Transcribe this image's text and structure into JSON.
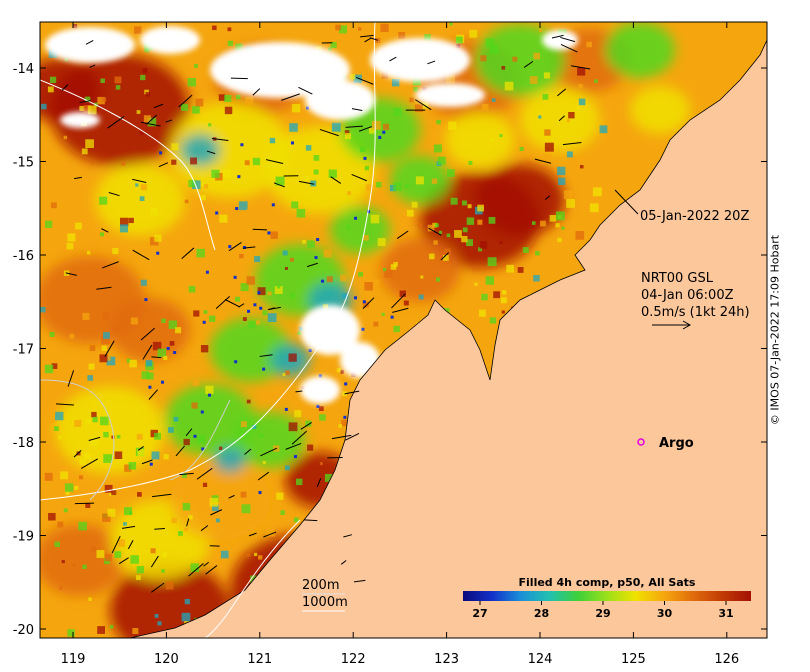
{
  "map": {
    "lat_ticks": [
      "-14",
      "-15",
      "-16",
      "-17",
      "-18",
      "-19",
      "-20"
    ],
    "lon_ticks": [
      "119",
      "120",
      "121",
      "122",
      "123",
      "124",
      "125",
      "126"
    ],
    "colors": {
      "land": "#fdc79c",
      "hot": "#a30f03",
      "orange": "#e06b0c",
      "amber": "#f5a60e",
      "yellow": "#f0e100",
      "green": "#51d71c",
      "cyan": "#22a7bd",
      "blue": "#1331c9",
      "cloud": "#ffffff",
      "argo": "#e000e0"
    }
  },
  "annotations": {
    "timestamp": "05-Jan-2022 20Z",
    "current_title": "NRT00 GSL",
    "current_time": "04-Jan 06:00Z",
    "current_scale": "0.5m/s (1kt 24h)",
    "argo_label": "Argo",
    "isobath_200": "200m",
    "isobath_1000": "1000m"
  },
  "colorbar": {
    "title": "Filled 4h comp, p50, All Sats",
    "ticks": [
      "27",
      "28",
      "29",
      "30",
      "31"
    ],
    "stops": [
      "#0a0a7a",
      "#1331c9",
      "#1a8fd8",
      "#22c0b0",
      "#3ed03a",
      "#9be01a",
      "#f0e100",
      "#f5a60e",
      "#e06b0c",
      "#c03a05",
      "#a30f03"
    ]
  },
  "credit": "© IMOS 07-Jan-2022 17:09 Hobart"
}
